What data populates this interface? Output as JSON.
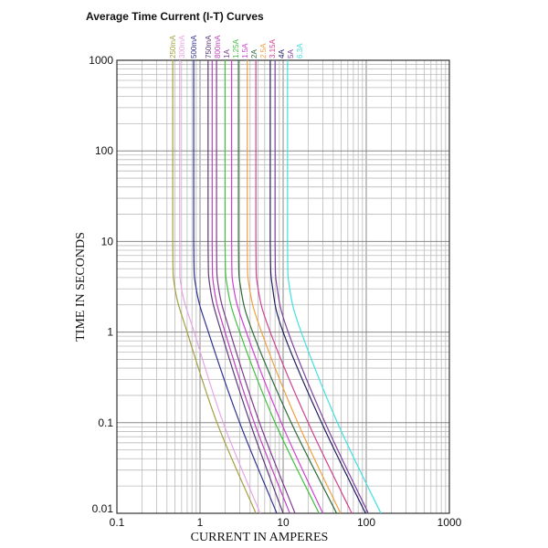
{
  "chart_data": {
    "type": "line",
    "title": "Average Time Current (I-T) Curves",
    "xlabel": "CURRENT IN AMPERES",
    "ylabel": "TIME IN SECONDS",
    "xscale": "log",
    "yscale": "log",
    "xlim": [
      0.1,
      1000
    ],
    "ylim": [
      0.01,
      1000
    ],
    "xticks": [
      "0.1",
      "1",
      "10",
      "100",
      "1000"
    ],
    "yticks": [
      "1000",
      "100",
      "10",
      "1",
      "0.1",
      "0.01"
    ],
    "grid": true,
    "legend": "labels along top of each curve",
    "series": [
      {
        "name": "250mA",
        "color": "#a4a040",
        "points": [
          [
            0.47,
            1000
          ],
          [
            0.47,
            10
          ],
          [
            0.5,
            3
          ],
          [
            0.7,
            1
          ],
          [
            1.6,
            0.1
          ],
          [
            4.7,
            0.01
          ]
        ]
      },
      {
        "name": "300mA",
        "color": "#e8a4e4",
        "points": [
          [
            0.57,
            1000
          ],
          [
            0.57,
            10
          ],
          [
            0.6,
            3
          ],
          [
            0.85,
            1
          ],
          [
            1.9,
            0.1
          ],
          [
            5.3,
            0.01
          ]
        ]
      },
      {
        "name": "500mA",
        "color": "#303090",
        "points": [
          [
            0.84,
            1000
          ],
          [
            0.84,
            10
          ],
          [
            0.9,
            3
          ],
          [
            1.26,
            1
          ],
          [
            3.0,
            0.1
          ],
          [
            8.4,
            0.01
          ]
        ]
      },
      {
        "name": "750mA",
        "color": "#5a3a78",
        "points": [
          [
            1.25,
            1000
          ],
          [
            1.25,
            10
          ],
          [
            1.33,
            3
          ],
          [
            1.8,
            1
          ],
          [
            4.0,
            0.1
          ],
          [
            10,
            0.01
          ]
        ]
      },
      {
        "name": "800mA",
        "color": "#c040c0",
        "points": [
          [
            1.4,
            1000
          ],
          [
            1.4,
            10
          ],
          [
            1.48,
            3
          ],
          [
            2.0,
            1
          ],
          [
            4.5,
            0.1
          ],
          [
            12,
            0.01
          ]
        ]
      },
      {
        "name": "1A",
        "color": "#7a3a8c",
        "points": [
          [
            1.58,
            1000
          ],
          [
            1.58,
            10
          ],
          [
            1.68,
            3
          ],
          [
            2.3,
            1
          ],
          [
            5.2,
            0.1
          ],
          [
            13.9,
            0.01
          ]
        ]
      },
      {
        "name": "1.25A",
        "color": "#40c040",
        "points": [
          [
            2.0,
            1000
          ],
          [
            2.0,
            10
          ],
          [
            2.15,
            3
          ],
          [
            3.0,
            1
          ],
          [
            8.0,
            0.1
          ],
          [
            27,
            0.01
          ]
        ]
      },
      {
        "name": "1.5A",
        "color": "#d040d0",
        "points": [
          [
            2.4,
            1000
          ],
          [
            2.4,
            10
          ],
          [
            2.55,
            3
          ],
          [
            3.6,
            1
          ],
          [
            9.5,
            0.1
          ],
          [
            30,
            0.01
          ]
        ]
      },
      {
        "name": "2A",
        "color": "#2e6a3a",
        "points": [
          [
            2.9,
            1000
          ],
          [
            2.9,
            10
          ],
          [
            3.1,
            3
          ],
          [
            4.3,
            1
          ],
          [
            12.5,
            0.1
          ],
          [
            44,
            0.01
          ]
        ]
      },
      {
        "name": "2.5A",
        "color": "#f0a040",
        "points": [
          [
            3.7,
            1000
          ],
          [
            3.7,
            10
          ],
          [
            3.95,
            3
          ],
          [
            5.5,
            1
          ],
          [
            15,
            0.1
          ],
          [
            49,
            0.01
          ]
        ]
      },
      {
        "name": "3.15A",
        "color": "#d04090",
        "points": [
          [
            4.7,
            1000
          ],
          [
            4.7,
            10
          ],
          [
            5.0,
            3
          ],
          [
            7.0,
            1
          ],
          [
            20,
            0.1
          ],
          [
            67,
            0.01
          ]
        ]
      },
      {
        "name": "4A",
        "color": "#202060",
        "points": [
          [
            7.0,
            1000
          ],
          [
            7.0,
            10
          ],
          [
            7.5,
            3
          ],
          [
            10,
            1
          ],
          [
            29,
            0.1
          ],
          [
            98,
            0.01
          ]
        ]
      },
      {
        "name": "5A",
        "color": "#8040a0",
        "points": [
          [
            8.0,
            1000
          ],
          [
            8.0,
            10
          ],
          [
            8.5,
            3
          ],
          [
            11.5,
            1
          ],
          [
            32,
            0.1
          ],
          [
            106,
            0.01
          ]
        ]
      },
      {
        "name": "6.3A",
        "color": "#40e0e0",
        "points": [
          [
            11.3,
            1000
          ],
          [
            11.3,
            10
          ],
          [
            12,
            3
          ],
          [
            16.5,
            1
          ],
          [
            45,
            0.1
          ],
          [
            150,
            0.01
          ]
        ]
      }
    ]
  }
}
